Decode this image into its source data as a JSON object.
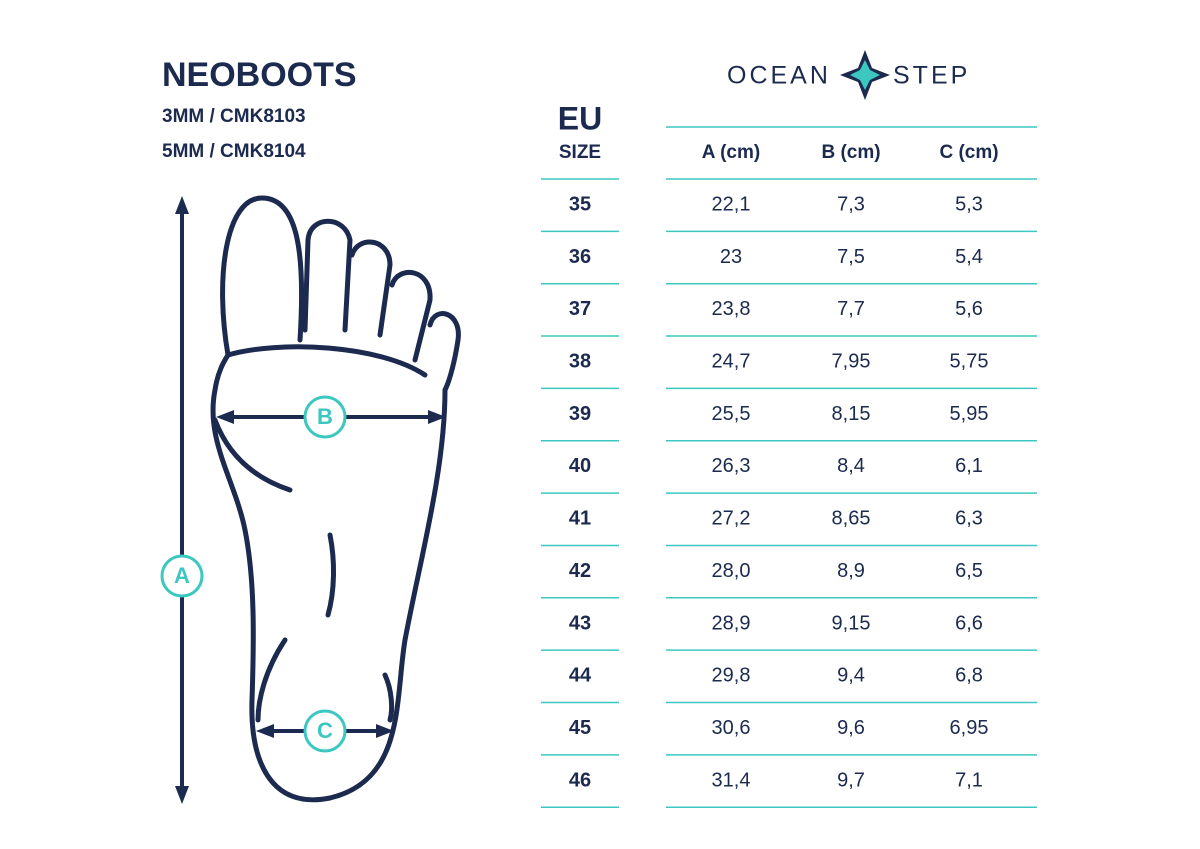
{
  "header": {
    "title": "NEOBOOTS",
    "lines": [
      "3MM / CMK8103",
      "5MM / CMK8104"
    ]
  },
  "logo": {
    "left": "OCEAN",
    "right": "STEP"
  },
  "diagram": {
    "labels": [
      "A",
      "B",
      "C"
    ]
  },
  "table": {
    "size_header": [
      "EU",
      "SIZE"
    ],
    "columns": [
      "A (cm)",
      "B (cm)",
      "C (cm)"
    ],
    "rows": [
      [
        "35",
        "22,1",
        "7,3",
        "5,3"
      ],
      [
        "36",
        "23",
        "7,5",
        "5,4"
      ],
      [
        "37",
        "23,8",
        "7,7",
        "5,6"
      ],
      [
        "38",
        "24,7",
        "7,95",
        "5,75"
      ],
      [
        "39",
        "25,5",
        "8,15",
        "5,95"
      ],
      [
        "40",
        "26,3",
        "8,4",
        "6,1"
      ],
      [
        "41",
        "27,2",
        "8,65",
        "6,3"
      ],
      [
        "42",
        "28,0",
        "8,9",
        "6,5"
      ],
      [
        "43",
        "28,9",
        "9,15",
        "6,6"
      ],
      [
        "44",
        "29,8",
        "9,4",
        "6,8"
      ],
      [
        "45",
        "30,6",
        "9,6",
        "6,95"
      ],
      [
        "46",
        "31,4",
        "9,7",
        "7,1"
      ]
    ]
  }
}
